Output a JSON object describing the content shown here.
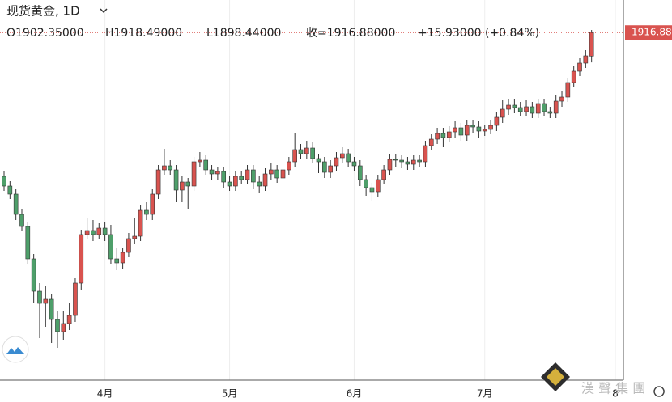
{
  "chart_data": {
    "type": "candlestick",
    "title": "现货黄金, 1D",
    "stats": [
      "O1902.35000",
      "H1918.49000",
      "L1898.44000",
      "收=1916.88000",
      "+15.93000 (+0.84%)"
    ],
    "watermark": "漢 聲 集 團",
    "categories": [
      null,
      null,
      null,
      null,
      null,
      null,
      null,
      null,
      null,
      null,
      null,
      null,
      null,
      null,
      null,
      null,
      null,
      "4月",
      null,
      null,
      null,
      null,
      null,
      null,
      null,
      null,
      null,
      null,
      null,
      null,
      null,
      null,
      null,
      null,
      null,
      null,
      null,
      null,
      "5月",
      null,
      null,
      null,
      null,
      null,
      null,
      null,
      null,
      null,
      null,
      null,
      null,
      null,
      null,
      null,
      null,
      null,
      null,
      null,
      null,
      "6月",
      null,
      null,
      null,
      null,
      null,
      null,
      null,
      null,
      null,
      null,
      null,
      null,
      null,
      null,
      null,
      null,
      null,
      null,
      null,
      null,
      null,
      "7月",
      null,
      null,
      null,
      null,
      null,
      null,
      null,
      null,
      null,
      null,
      null,
      null,
      null,
      null,
      null,
      null,
      null,
      null,
      null,
      null,
      null,
      "8"
    ],
    "open": [
      1828,
      1822,
      1817,
      1804.5,
      1797,
      1777,
      1757,
      1749.5,
      1752,
      1739.5,
      1732,
      1737,
      1742,
      1762,
      1792,
      1794.5,
      1792,
      1796,
      1792,
      1777,
      1774.5,
      1781,
      1789.5,
      1791,
      1807,
      1804.5,
      1817,
      1832,
      1834.5,
      1832,
      1819.5,
      1824.5,
      1822,
      1837,
      1838,
      1832,
      1829.5,
      1831,
      1824.5,
      1822,
      1828,
      1826,
      1832,
      1824.5,
      1822,
      1829.5,
      1832,
      1827,
      1832,
      1837,
      1844.5,
      1842,
      1845.5,
      1839,
      1837,
      1830.5,
      1834.5,
      1839.5,
      1842,
      1837,
      1834.5,
      1826,
      1821,
      1818.5,
      1826,
      1832,
      1838.5,
      1838,
      1837,
      1835.5,
      1838,
      1837,
      1847,
      1851,
      1854.5,
      1852,
      1855.5,
      1858,
      1853.5,
      1859.5,
      1858.5,
      1856,
      1857,
      1859.5,
      1864.5,
      1869.5,
      1872,
      1870.5,
      1868,
      1871,
      1867,
      1873,
      1868,
      1867,
      1874.5,
      1877,
      1886,
      1893,
      1898,
      1902.35,
      null,
      null,
      null,
      null
    ],
    "high": [
      1831,
      1825,
      1820,
      1807.5,
      1800,
      1780,
      1762,
      1760,
      1755,
      1745,
      1745,
      1750,
      1765,
      1795,
      1802,
      1801,
      1799,
      1800,
      1798,
      1784,
      1784,
      1793,
      1802,
      1810,
      1812,
      1820,
      1835,
      1845,
      1838,
      1835,
      1828,
      1827,
      1840,
      1843,
      1841,
      1835,
      1834,
      1834,
      1828,
      1831,
      1831,
      1835,
      1835,
      1828,
      1833,
      1836,
      1835,
      1835,
      1840,
      1855,
      1848,
      1850,
      1849,
      1842,
      1840,
      1838,
      1843,
      1846,
      1845,
      1840,
      1838,
      1829,
      1824,
      1829,
      1835,
      1842,
      1842,
      1841,
      1840,
      1841,
      1841,
      1850,
      1854,
      1858,
      1858,
      1859,
      1862,
      1861,
      1863,
      1863,
      1862,
      1860,
      1863,
      1868,
      1875,
      1876,
      1876,
      1874,
      1875,
      1874,
      1876,
      1876,
      1871,
      1878,
      1881,
      1889,
      1896,
      1901,
      1906,
      1918.49,
      null,
      null,
      null,
      null
    ],
    "low": [
      1819,
      1814,
      1801,
      1794,
      1774,
      1750,
      1728,
      1735,
      1725,
      1722,
      1727,
      1733,
      1738,
      1758,
      1789,
      1788,
      1789,
      1788,
      1774,
      1770,
      1771,
      1778,
      1786,
      1788,
      1801,
      1801,
      1814,
      1829,
      1829,
      1812,
      1812,
      1808,
      1819,
      1834,
      1829,
      1826,
      1826,
      1821,
      1819,
      1819,
      1823,
      1823,
      1820,
      1818,
      1819,
      1826,
      1824,
      1824,
      1829,
      1834,
      1839,
      1839,
      1836,
      1830,
      1827,
      1827,
      1831,
      1836,
      1834,
      1831,
      1822,
      1816,
      1813,
      1815,
      1823,
      1829,
      1834,
      1833,
      1832,
      1832,
      1834,
      1834,
      1844,
      1848,
      1846,
      1849,
      1852,
      1850,
      1850,
      1855,
      1852,
      1853,
      1854,
      1856,
      1861,
      1866,
      1867,
      1865,
      1865,
      1864,
      1864,
      1865,
      1864,
      1864,
      1871,
      1874,
      1883,
      1890,
      1895,
      1898.44,
      null,
      null,
      null,
      null
    ],
    "close": [
      1822,
      1817,
      1804.5,
      1797,
      1777,
      1757,
      1749.5,
      1752,
      1739.5,
      1732,
      1737,
      1742,
      1762,
      1792,
      1794.5,
      1792,
      1796,
      1792,
      1777,
      1774.5,
      1781,
      1789.5,
      1791,
      1807,
      1804.5,
      1817,
      1832,
      1834.5,
      1832,
      1819.5,
      1824.5,
      1822,
      1837,
      1838,
      1832,
      1829.5,
      1831,
      1824.5,
      1822,
      1828,
      1826,
      1832,
      1824.5,
      1822,
      1829.5,
      1832,
      1827,
      1832,
      1837,
      1844.5,
      1842,
      1845.5,
      1839,
      1837,
      1830.5,
      1834.5,
      1839.5,
      1842,
      1837,
      1834.5,
      1826,
      1821,
      1818.5,
      1826,
      1832,
      1838.5,
      1838,
      1837,
      1835.5,
      1838,
      1837,
      1847,
      1851,
      1854.5,
      1852,
      1855.5,
      1858,
      1853.5,
      1859.5,
      1858.5,
      1856,
      1857,
      1859.5,
      1864.5,
      1869.5,
      1872,
      1870.5,
      1868,
      1871,
      1867,
      1873,
      1868,
      1867,
      1874.5,
      1877,
      1886,
      1893,
      1898,
      1902.5,
      1916.88,
      null,
      null,
      null,
      null
    ],
    "up_color": "#d9534f",
    "down_color": "#4e9f6a",
    "ylim": [
      1702,
      1937
    ],
    "grid": true
  }
}
